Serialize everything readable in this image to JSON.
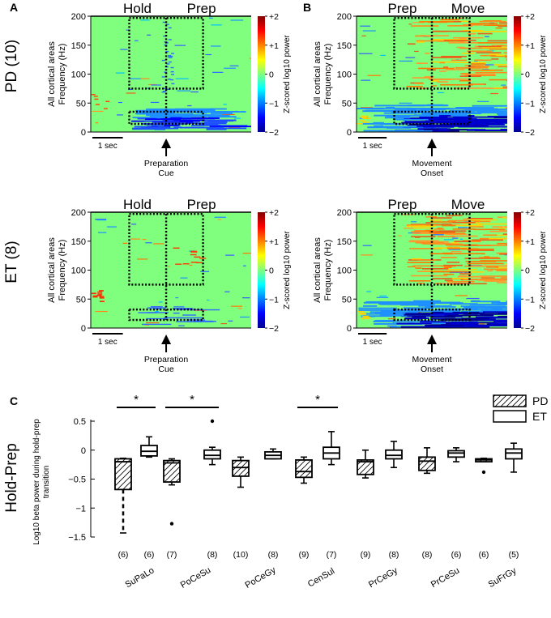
{
  "chart_data": [
    {
      "type": "heatmap",
      "panel_letter": "A",
      "row_label": "PD (10)",
      "window_labels": [
        "Hold",
        "Prep"
      ],
      "ylabel_line1": "All cortical areas",
      "ylabel_line2": "Frequency (Hz)",
      "yticks": [
        0,
        50,
        100,
        150,
        200
      ],
      "ylim": [
        0,
        200
      ],
      "scalebar_label": "1 sec",
      "event_label_line1": "Preparation",
      "event_label_line2": "Cue",
      "colorbar_ticks": [
        "+2",
        "+1",
        "0",
        "−1",
        "−2"
      ],
      "colorbar_label": "Z-scored log10 power",
      "pattern": "pd_hold"
    },
    {
      "type": "heatmap",
      "panel_letter": "B",
      "row_label": "",
      "window_labels": [
        "Prep",
        "Move"
      ],
      "ylabel_line1": "All cortical areas",
      "ylabel_line2": "Frequency (Hz)",
      "yticks": [
        0,
        50,
        100,
        150,
        200
      ],
      "ylim": [
        0,
        200
      ],
      "scalebar_label": "1 sec",
      "event_label_line1": "Movement",
      "event_label_line2": "Onset",
      "colorbar_ticks": [
        "+2",
        "+1",
        "0",
        "−1",
        "−2"
      ],
      "colorbar_label": "Z-scored log10 power",
      "pattern": "pd_move"
    },
    {
      "type": "heatmap",
      "panel_letter": "",
      "row_label": "ET (8)",
      "window_labels": [
        "Hold",
        "Prep"
      ],
      "ylabel_line1": "All cortical areas",
      "ylabel_line2": "Frequency (Hz)",
      "yticks": [
        0,
        50,
        100,
        150,
        200
      ],
      "ylim": [
        0,
        200
      ],
      "scalebar_label": "1 sec",
      "event_label_line1": "Preparation",
      "event_label_line2": "Cue",
      "colorbar_ticks": [
        "+2",
        "+1",
        "0",
        "−1",
        "−2"
      ],
      "colorbar_label": "Z-scored log10 power",
      "pattern": "et_hold"
    },
    {
      "type": "heatmap",
      "panel_letter": "",
      "row_label": "",
      "window_labels": [
        "Prep",
        "Move"
      ],
      "ylabel_line1": "All cortical areas",
      "ylabel_line2": "Frequency (Hz)",
      "yticks": [
        0,
        50,
        100,
        150,
        200
      ],
      "ylim": [
        0,
        200
      ],
      "scalebar_label": "1 sec",
      "event_label_line1": "Movement",
      "event_label_line2": "Onset",
      "colorbar_ticks": [
        "+2",
        "+1",
        "0",
        "−1",
        "−2"
      ],
      "colorbar_label": "Z-scored log10 power",
      "pattern": "et_move"
    },
    {
      "type": "boxplot",
      "panel_letter": "C",
      "row_label": "Hold-Prep",
      "ylabel_line1": "Log10 beta power during hold-prep",
      "ylabel_line2": "transition",
      "ylim": [
        -1.5,
        0.5
      ],
      "yticks": [
        0.5,
        0,
        -0.5,
        -1,
        -1.5
      ],
      "ytick_labels": [
        "0.5",
        "0",
        "−0.5",
        "−1",
        "−1.5"
      ],
      "legend": [
        "PD",
        "ET"
      ],
      "categories": [
        "SuPaLo",
        "PoCeSu",
        "PoCeGy",
        "CenSul",
        "PrCeGy",
        "PrCeSu",
        "SuFrGy"
      ],
      "significance_marker": "*",
      "significant_categories": [
        "SuPaLo",
        "PoCeSu",
        "CenSul"
      ],
      "series": [
        {
          "name": "PD",
          "boxes": [
            {
              "n": "(6)",
              "min": -1.43,
              "q1": -0.68,
              "median": -0.2,
              "q3": -0.15,
              "max": -0.14,
              "outliers": []
            },
            {
              "n": "(7)",
              "min": -0.6,
              "q1": -0.55,
              "median": -0.22,
              "q3": -0.18,
              "max": -0.15,
              "outliers": [
                -1.27
              ]
            },
            {
              "n": "(10)",
              "min": -0.64,
              "q1": -0.45,
              "median": -0.3,
              "q3": -0.18,
              "max": -0.12,
              "outliers": []
            },
            {
              "n": "(9)",
              "min": -0.57,
              "q1": -0.47,
              "median": -0.37,
              "q3": -0.17,
              "max": -0.12,
              "outliers": []
            },
            {
              "n": "(9)",
              "min": -0.48,
              "q1": -0.42,
              "median": -0.2,
              "q3": -0.17,
              "max": 0.0,
              "outliers": []
            },
            {
              "n": "(8)",
              "min": -0.4,
              "q1": -0.35,
              "median": -0.19,
              "q3": -0.12,
              "max": 0.04,
              "outliers": []
            },
            {
              "n": "(6)",
              "min": -0.2,
              "q1": -0.2,
              "median": -0.17,
              "q3": -0.15,
              "max": -0.14,
              "outliers": [
                -0.38
              ]
            }
          ]
        },
        {
          "name": "ET",
          "boxes": [
            {
              "n": "(6)",
              "min": -0.12,
              "q1": -0.1,
              "median": -0.02,
              "q3": 0.08,
              "max": 0.23,
              "outliers": []
            },
            {
              "n": "(8)",
              "min": -0.25,
              "q1": -0.15,
              "median": -0.09,
              "q3": 0.0,
              "max": 0.05,
              "outliers": [
                0.5
              ]
            },
            {
              "n": "(8)",
              "min": -0.15,
              "q1": -0.15,
              "median": -0.09,
              "q3": -0.03,
              "max": 0.02,
              "outliers": []
            },
            {
              "n": "(7)",
              "min": -0.25,
              "q1": -0.15,
              "median": -0.05,
              "q3": 0.05,
              "max": 0.32,
              "outliers": []
            },
            {
              "n": "(8)",
              "min": -0.3,
              "q1": -0.15,
              "median": -0.09,
              "q3": 0.0,
              "max": 0.15,
              "outliers": []
            },
            {
              "n": "(6)",
              "min": -0.2,
              "q1": -0.12,
              "median": -0.05,
              "q3": -0.01,
              "max": 0.04,
              "outliers": []
            },
            {
              "n": "(5)",
              "min": -0.38,
              "q1": -0.15,
              "median": -0.05,
              "q3": 0.02,
              "max": 0.12,
              "outliers": []
            }
          ]
        }
      ]
    }
  ]
}
